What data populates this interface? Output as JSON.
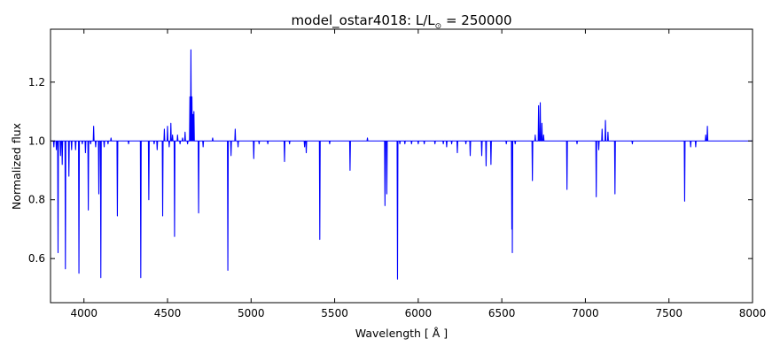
{
  "chart_data": {
    "type": "line",
    "title_prefix": "model_ostar4018: L/L",
    "title_sub": "⊙",
    "title_suffix": " = 250000",
    "xlabel": "Wavelength [ Å ]",
    "ylabel": "Normalized flux",
    "xlim": [
      3800,
      8000
    ],
    "ylim": [
      0.45,
      1.38
    ],
    "xticks": [
      4000,
      4500,
      5000,
      5500,
      6000,
      6500,
      7000,
      7500,
      8000
    ],
    "yticks": [
      0.6,
      0.8,
      1.0,
      1.2
    ],
    "grid": false,
    "line_color": "#0000ff",
    "continuum": 1.0,
    "series": [
      {
        "features": [
          [
            3820,
            0.98
          ],
          [
            3835,
            0.97
          ],
          [
            3845,
            0.62
          ],
          [
            3860,
            0.95
          ],
          [
            3870,
            0.92
          ],
          [
            3889,
            0.565
          ],
          [
            3910,
            0.88
          ],
          [
            3926,
            0.97
          ],
          [
            3950,
            0.97
          ],
          [
            3970,
            0.55
          ],
          [
            3990,
            0.99
          ],
          [
            4009,
            0.96
          ],
          [
            4026,
            0.765
          ],
          [
            4040,
            0.99
          ],
          [
            4058,
            1.05
          ],
          [
            4070,
            0.98
          ],
          [
            4089,
            0.82
          ],
          [
            4101,
            0.535
          ],
          [
            4121,
            0.98
          ],
          [
            4144,
            0.99
          ],
          [
            4162,
            1.01
          ],
          [
            4200,
            0.745
          ],
          [
            4267,
            0.99
          ],
          [
            4340,
            0.535
          ],
          [
            4388,
            0.8
          ],
          [
            4420,
            0.99
          ],
          [
            4438,
            0.97
          ],
          [
            4471,
            0.745
          ],
          [
            4481,
            1.04
          ],
          [
            4500,
            1.05
          ],
          [
            4510,
            0.98
          ],
          [
            4520,
            1.06
          ],
          [
            4530,
            1.02
          ],
          [
            4542,
            0.675
          ],
          [
            4560,
            1.02
          ],
          [
            4575,
            0.99
          ],
          [
            4590,
            1.01
          ],
          [
            4605,
            1.03
          ],
          [
            4620,
            0.99
          ],
          [
            4634,
            1.15
          ],
          [
            4640,
            1.31
          ],
          [
            4646,
            1.15
          ],
          [
            4652,
            1.09
          ],
          [
            4658,
            1.1
          ],
          [
            4686,
            0.755
          ],
          [
            4713,
            0.98
          ],
          [
            4770,
            1.01
          ],
          [
            4861,
            0.56
          ],
          [
            4880,
            0.95
          ],
          [
            4905,
            1.04
          ],
          [
            4922,
            0.98
          ],
          [
            5016,
            0.94
          ],
          [
            5048,
            0.99
          ],
          [
            5100,
            0.99
          ],
          [
            5200,
            0.93
          ],
          [
            5230,
            0.99
          ],
          [
            5320,
            0.98
          ],
          [
            5330,
            0.96
          ],
          [
            5411,
            0.665
          ],
          [
            5470,
            0.99
          ],
          [
            5592,
            0.9
          ],
          [
            5696,
            1.01
          ],
          [
            5801,
            0.78
          ],
          [
            5812,
            0.82
          ],
          [
            5876,
            0.53
          ],
          [
            5890,
            0.99
          ],
          [
            5920,
            0.99
          ],
          [
            5960,
            0.99
          ],
          [
            6000,
            0.99
          ],
          [
            6036,
            0.99
          ],
          [
            6100,
            0.99
          ],
          [
            6150,
            0.99
          ],
          [
            6170,
            0.98
          ],
          [
            6200,
            0.99
          ],
          [
            6234,
            0.96
          ],
          [
            6285,
            0.99
          ],
          [
            6311,
            0.95
          ],
          [
            6380,
            0.95
          ],
          [
            6406,
            0.915
          ],
          [
            6435,
            0.92
          ],
          [
            6527,
            0.99
          ],
          [
            6560,
            0.7
          ],
          [
            6563,
            0.62
          ],
          [
            6580,
            0.99
          ],
          [
            6683,
            0.865
          ],
          [
            6700,
            1.02
          ],
          [
            6720,
            1.12
          ],
          [
            6730,
            1.13
          ],
          [
            6740,
            1.06
          ],
          [
            6750,
            1.02
          ],
          [
            6890,
            0.835
          ],
          [
            6950,
            0.99
          ],
          [
            7065,
            0.81
          ],
          [
            7080,
            0.97
          ],
          [
            7100,
            1.04
          ],
          [
            7120,
            1.07
          ],
          [
            7135,
            1.03
          ],
          [
            7177,
            0.82
          ],
          [
            7281,
            0.99
          ],
          [
            7594,
            0.795
          ],
          [
            7630,
            0.98
          ],
          [
            7660,
            0.98
          ],
          [
            7720,
            1.02
          ],
          [
            7730,
            1.05
          ]
        ]
      }
    ]
  }
}
